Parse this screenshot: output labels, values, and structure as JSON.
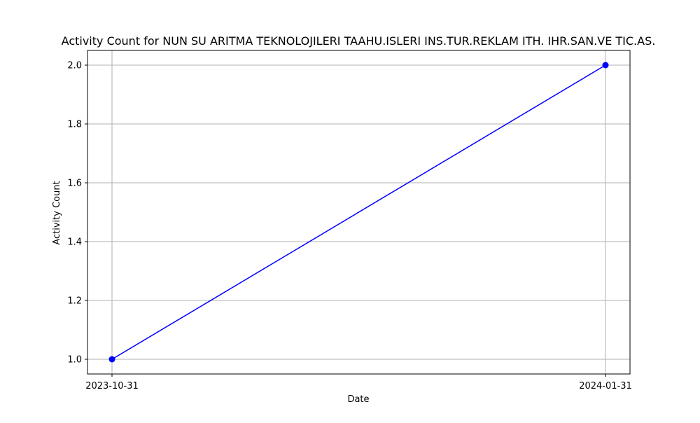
{
  "chart_data": {
    "type": "line",
    "title": "Activity Count for NUN SU ARITMA TEKNOLOJILERI TAAHU.ISLERI INS.TUR.REKLAM ITH. IHR.SAN.VE TIC.AS.",
    "xlabel": "Date",
    "ylabel": "Activity Count",
    "x": [
      "2023-10-31",
      "2024-01-31"
    ],
    "x_tick_labels": [
      "2023-10-31",
      "2024-01-31"
    ],
    "y_ticks": [
      1.0,
      1.2,
      1.4,
      1.6,
      1.8,
      2.0
    ],
    "y_tick_labels": [
      "1.0",
      "1.2",
      "1.4",
      "1.6",
      "1.8",
      "2.0"
    ],
    "series": [
      {
        "values": [
          1,
          2
        ],
        "color": "#0000ff",
        "marker": "circle"
      }
    ],
    "ylim": [
      0.95,
      2.05
    ],
    "grid": true,
    "grid_color": "#b0b0b0",
    "legend": false
  }
}
